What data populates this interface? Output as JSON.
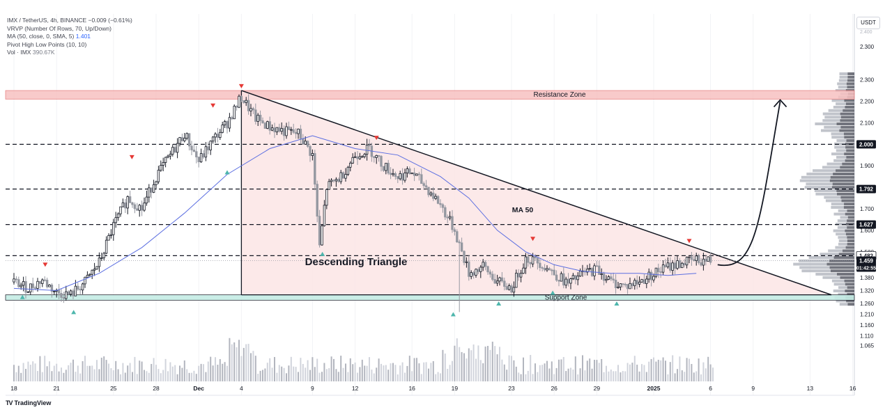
{
  "header": {
    "symbol_line": "IMX / TetherUS, 4h, BINANCE",
    "change": "−0.009 (−0.61%)",
    "vrvp": "VRVP (Number Of Rows, 70, Up/Down)",
    "ma_label": "MA (50, close, 0, SMA, 5)",
    "ma_value": "1.401",
    "pivot": "Pivot High Low Points (10, 10)",
    "vol_label": "Vol · IMX",
    "vol_value": "390.67K",
    "currency": "USDT"
  },
  "footer": {
    "logo": "TV",
    "brand": "TradingView"
  },
  "chart_data": {
    "type": "line",
    "title": "IMX / TetherUS, 4h, BINANCE",
    "y_axis_labels": [
      "2.300",
      "2.200",
      "2.100",
      "1.900",
      "1.700",
      "1.600",
      "1.500",
      "1.380",
      "1.320",
      "1.260",
      "1.210",
      "1.160",
      "1.110",
      "1.065"
    ],
    "y_axis_top_partial": "2.300",
    "y_axis_extra_top": "2.400",
    "price_tags": [
      {
        "value": "2.000",
        "bg": "#131722",
        "color": "#ffffff"
      },
      {
        "value": "1.792",
        "bg": "#131722",
        "color": "#ffffff"
      },
      {
        "value": "1.627",
        "bg": "#131722",
        "color": "#ffffff"
      },
      {
        "value": "1.482",
        "bg": "#ffffff",
        "color": "#131722"
      },
      {
        "value": "1.459",
        "bg": "#131722",
        "color": "#ffffff"
      },
      {
        "value": "01:42:55",
        "bg": "#131722",
        "color": "#ffffff"
      }
    ],
    "x_tick_labels": [
      "18",
      "21",
      "25",
      "28",
      "Dec",
      "4",
      "9",
      "12",
      "16",
      "19",
      "23",
      "26",
      "29",
      "2025",
      "6",
      "9",
      "13",
      "16"
    ],
    "x_tick_days": [
      0,
      3,
      7,
      10,
      13,
      16,
      21,
      24,
      28,
      31,
      35,
      38,
      41,
      45,
      49,
      52,
      56,
      59
    ],
    "annotations": {
      "resistance": "Resistance Zone",
      "support": "Support Zone",
      "triangle": "Descending Triangle",
      "ma": "MA 50"
    },
    "resistance_zone": [
      2.21,
      2.25
    ],
    "support_zone": [
      1.275,
      1.3
    ],
    "horizontal_levels": [
      2.0,
      1.792,
      1.627,
      1.482
    ],
    "triangle": {
      "apex_day": 16.0,
      "apex_price": 2.25,
      "base_price": 1.3,
      "end_day": 57.5
    },
    "ylim": [
      1.03,
      2.42
    ],
    "price_path": [
      [
        0,
        1.36
      ],
      [
        1,
        1.33
      ],
      [
        2,
        1.37
      ],
      [
        3,
        1.31
      ],
      [
        4,
        1.3
      ],
      [
        5,
        1.36
      ],
      [
        6,
        1.45
      ],
      [
        7,
        1.62
      ],
      [
        8,
        1.75
      ],
      [
        9,
        1.7
      ],
      [
        10,
        1.85
      ],
      [
        11,
        1.95
      ],
      [
        12,
        2.05
      ],
      [
        13,
        1.92
      ],
      [
        14,
        2.02
      ],
      [
        15,
        2.1
      ],
      [
        16,
        2.22
      ],
      [
        17,
        2.12
      ],
      [
        18,
        2.08
      ],
      [
        19,
        2.06
      ],
      [
        20,
        2.05
      ],
      [
        21,
        1.95
      ],
      [
        21.5,
        1.52
      ],
      [
        22,
        1.8
      ],
      [
        23,
        1.85
      ],
      [
        24,
        1.95
      ],
      [
        25,
        1.98
      ],
      [
        26,
        1.9
      ],
      [
        27,
        1.85
      ],
      [
        28,
        1.87
      ],
      [
        29,
        1.8
      ],
      [
        30,
        1.72
      ],
      [
        31,
        1.6
      ],
      [
        32,
        1.4
      ],
      [
        33,
        1.43
      ],
      [
        34,
        1.36
      ],
      [
        35,
        1.33
      ],
      [
        36,
        1.47
      ],
      [
        37,
        1.45
      ],
      [
        38,
        1.4
      ],
      [
        39,
        1.35
      ],
      [
        40,
        1.4
      ],
      [
        41,
        1.42
      ],
      [
        42,
        1.36
      ],
      [
        43,
        1.34
      ],
      [
        44,
        1.36
      ],
      [
        45,
        1.4
      ],
      [
        46,
        1.43
      ],
      [
        47,
        1.45
      ],
      [
        48,
        1.46
      ],
      [
        49,
        1.46
      ]
    ],
    "ma50_path": [
      [
        0,
        1.33
      ],
      [
        3,
        1.32
      ],
      [
        6,
        1.4
      ],
      [
        9,
        1.52
      ],
      [
        12,
        1.68
      ],
      [
        15,
        1.86
      ],
      [
        18,
        1.98
      ],
      [
        21,
        2.04
      ],
      [
        24,
        1.98
      ],
      [
        27,
        1.95
      ],
      [
        30,
        1.85
      ],
      [
        32,
        1.75
      ],
      [
        34,
        1.6
      ],
      [
        36,
        1.5
      ],
      [
        38,
        1.44
      ],
      [
        40,
        1.41
      ],
      [
        42,
        1.4
      ],
      [
        44,
        1.4
      ],
      [
        46,
        1.39
      ],
      [
        48,
        1.4
      ]
    ],
    "pivot_highs": [
      [
        2.2,
        1.44
      ],
      [
        8.3,
        1.94
      ],
      [
        14.0,
        2.18
      ],
      [
        16.0,
        2.27
      ],
      [
        25.5,
        2.03
      ],
      [
        36.5,
        1.56
      ],
      [
        47.5,
        1.55
      ]
    ],
    "pivot_lows": [
      [
        0.6,
        1.29
      ],
      [
        4.2,
        1.22
      ],
      [
        15.0,
        1.87
      ],
      [
        21.7,
        1.49
      ],
      [
        30.9,
        1.21
      ],
      [
        34.1,
        1.26
      ],
      [
        37.9,
        1.31
      ],
      [
        42.4,
        1.26
      ]
    ],
    "projection_note": "arrow from current price toward resistance",
    "colors": {
      "up": "#131722",
      "down": "#9598a1",
      "ma": "#5b6ee1",
      "resistance_fill": "#f7c1c1",
      "support_fill": "#c5ede5",
      "triangle_fill": "#fbe3e3",
      "pivot_high": "#e53935",
      "pivot_low": "#4db6ac"
    }
  }
}
